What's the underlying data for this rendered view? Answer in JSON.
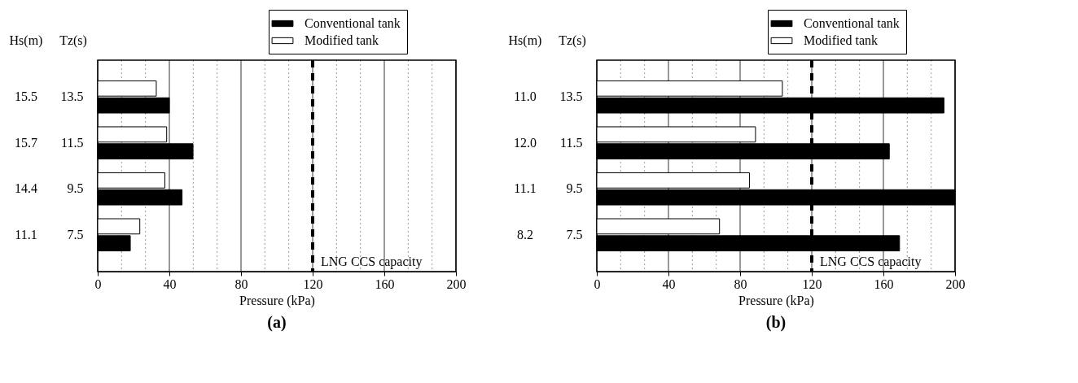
{
  "chart_data": [
    {
      "type": "bar",
      "orientation": "horizontal",
      "title": "(a)",
      "xlabel": "Pressure (kPa)",
      "ylabel": "Tz(s)",
      "categories": [
        "13.5",
        "11.5",
        "9.5",
        "7.5"
      ],
      "series": [
        {
          "name": "Conventional tank",
          "color": "#000000",
          "values": [
            40,
            53.2,
            47.1,
            18.2
          ]
        },
        {
          "name": "Modified tank",
          "color": "#ffffff",
          "values": [
            32.7,
            38.5,
            37.5,
            23.5
          ]
        }
      ],
      "xlim": [
        0,
        200
      ],
      "xticks": [
        0,
        {
          "value": 13.33,
          "label": null
        },
        {
          "value": 26.67,
          "label": null
        },
        40,
        {
          "value": 53.33,
          "label": null
        },
        {
          "value": 66.67,
          "label": null
        },
        80,
        {
          "value": 93.33,
          "label": null
        },
        {
          "value": 106.67,
          "label": null
        },
        120,
        {
          "value": 133.33,
          "label": null
        },
        {
          "value": 146.67,
          "label": null
        },
        160,
        {
          "value": 173.33,
          "label": null
        },
        {
          "value": 186.67,
          "label": null
        },
        200
      ],
      "grid": "x",
      "legend": "top right",
      "ref_lines": [
        {
          "axis": "x",
          "value": 120,
          "label": "LNG CCS capacity",
          "line_style": "dashed"
        }
      ],
      "annotations": [
        "Hs(m)",
        "15.5",
        "15.7",
        "14.4",
        "11.1"
      ]
    },
    {
      "type": "bar",
      "orientation": "horizontal",
      "title": "(b)",
      "xlabel": "Pressure (kPa)",
      "ylabel": "Tz(s)",
      "categories": [
        "13.5",
        "11.5",
        "9.5",
        "7.5"
      ],
      "series": [
        {
          "name": "Conventional tank",
          "color": "#000000",
          "values": [
            193.8,
            163.3,
            200,
            169
          ]
        },
        {
          "name": "Modified tank",
          "color": "#ffffff",
          "values": [
            103.6,
            88.6,
            85.2,
            68.5
          ]
        }
      ],
      "xlim": [
        0,
        200
      ],
      "xticks": [
        0,
        {
          "value": 13.33,
          "label": null
        },
        {
          "value": 26.67,
          "label": null
        },
        40,
        {
          "value": 53.33,
          "label": null
        },
        {
          "value": 66.67,
          "label": null
        },
        80,
        {
          "value": 93.33,
          "label": null
        },
        {
          "value": 106.67,
          "label": null
        },
        120,
        {
          "value": 133.33,
          "label": null
        },
        {
          "value": 146.67,
          "label": null
        },
        160,
        {
          "value": 173.33,
          "label": null
        },
        {
          "value": 186.67,
          "label": null
        },
        200
      ],
      "grid": "x",
      "legend": "top right",
      "ref_lines": [
        {
          "axis": "x",
          "value": 120,
          "label": "LNG CCS capacity",
          "line_style": "dashed"
        }
      ],
      "annotations": [
        "Hs(m)",
        "11.0",
        "12.0",
        "11.1",
        "8.2"
      ]
    }
  ]
}
